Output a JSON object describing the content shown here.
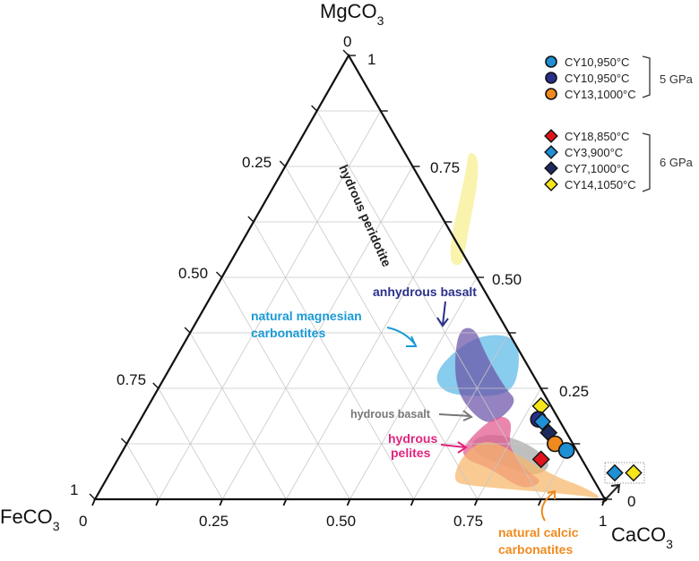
{
  "chart_data": {
    "type": "ternary-scatter",
    "title": "",
    "apices": {
      "top": "MgCO3",
      "left": "FeCO3",
      "right": "CaCO3"
    },
    "axis_range": [
      0,
      1
    ],
    "grid": true,
    "grid_step": 0.125,
    "ticks": {
      "bottom_axis_CaCO3": [
        "0",
        "0.25",
        "0.50",
        "0.75",
        "1"
      ],
      "left_axis_MgCO3": [
        "1",
        "0.75",
        "0.50",
        "0.25",
        "0"
      ],
      "right_axis_MgCO3": [
        "1",
        "0.75",
        "0.50",
        "0.25",
        "0"
      ]
    },
    "tick_values": [
      0,
      0.25,
      0.5,
      0.75,
      1
    ],
    "legend_position": "top-right",
    "legend_groups": [
      {
        "pressure": "5 GPa",
        "entries": [
          {
            "label": "CY10,950°C",
            "marker": "circle",
            "color": "#1f8fd6"
          },
          {
            "label": "CY10,950°C",
            "marker": "circle",
            "color": "#2a2f8c"
          },
          {
            "label": "CY13,1000°C",
            "marker": "circle",
            "color": "#f0891e"
          }
        ]
      },
      {
        "pressure": "6 GPa",
        "entries": [
          {
            "label": "CY18,850°C",
            "marker": "diamond",
            "color": "#e0141e"
          },
          {
            "label": "CY3,900°C",
            "marker": "diamond",
            "color": "#1f8fd6"
          },
          {
            "label": "CY7,1000°C",
            "marker": "diamond",
            "color": "#1d2a5c"
          },
          {
            "label": "CY14,1050°C",
            "marker": "diamond",
            "color": "#f7e51c"
          }
        ]
      }
    ],
    "points": [
      {
        "sample": "CY14,1050°C",
        "marker": "diamond",
        "color": "#f7e51c",
        "CaCO3": 0.77,
        "MgCO3": 0.21
      },
      {
        "sample": "CY10,950°C",
        "marker": "circle",
        "color": "#2a2f8c",
        "CaCO3": 0.78,
        "MgCO3": 0.18
      },
      {
        "sample": "CY3,900°C",
        "marker": "diamond",
        "color": "#1f8fd6",
        "CaCO3": 0.79,
        "MgCO3": 0.175
      },
      {
        "sample": "CY7,1000°C",
        "marker": "diamond",
        "color": "#1d2a5c",
        "CaCO3": 0.815,
        "MgCO3": 0.15
      },
      {
        "sample": "CY13,1000°C",
        "marker": "circle",
        "color": "#f0891e",
        "CaCO3": 0.84,
        "MgCO3": 0.125
      },
      {
        "sample": "CY10,950°C",
        "marker": "circle",
        "color": "#1f8fd6",
        "CaCO3": 0.87,
        "MgCO3": 0.11
      },
      {
        "sample": "CY18,850°C",
        "marker": "diamond",
        "color": "#e0141e",
        "CaCO3": 0.83,
        "MgCO3": 0.09
      }
    ],
    "inset_points": [
      {
        "sample": "CY3,900°C",
        "marker": "diamond",
        "color": "#1f8fd6",
        "CaCO3": 1.0,
        "MgCO3": 0.0
      },
      {
        "sample": "CY14,1050°C",
        "marker": "diamond",
        "color": "#f7e51c",
        "CaCO3": 1.0,
        "MgCO3": 0.0
      }
    ],
    "regions": [
      {
        "name": "hydrous peridotite",
        "color": "#f7ef8f",
        "label_color": "#222222",
        "outline": [
          [
            0.36,
            0.74
          ],
          [
            0.34,
            0.79
          ],
          [
            0.38,
            0.76
          ],
          [
            0.44,
            0.58
          ],
          [
            0.46,
            0.52
          ],
          [
            0.42,
            0.54
          ]
        ]
      },
      {
        "name": "natural magnesian carbonatites",
        "color": "#5ab8e8",
        "label_color": "#1a9ad6",
        "outline": [
          [
            0.52,
            0.29
          ],
          [
            0.56,
            0.37
          ],
          [
            0.64,
            0.37
          ],
          [
            0.68,
            0.31
          ],
          [
            0.7,
            0.24
          ],
          [
            0.64,
            0.23
          ],
          [
            0.56,
            0.24
          ]
        ]
      },
      {
        "name": "anhydrous basalt",
        "color": "#6b53a8",
        "label_color": "#2a2f8c",
        "outline": [
          [
            0.52,
            0.38
          ],
          [
            0.55,
            0.39
          ],
          [
            0.6,
            0.33
          ],
          [
            0.68,
            0.25
          ],
          [
            0.72,
            0.22
          ],
          [
            0.7,
            0.17
          ],
          [
            0.66,
            0.18
          ],
          [
            0.58,
            0.25
          ]
        ]
      },
      {
        "name": "hydrous basalt",
        "color": "#a6a6a6",
        "label_color": "#777777",
        "outline": [
          [
            0.67,
            0.13
          ],
          [
            0.7,
            0.15
          ],
          [
            0.78,
            0.13
          ],
          [
            0.86,
            0.08
          ],
          [
            0.84,
            0.05
          ],
          [
            0.78,
            0.07
          ],
          [
            0.7,
            0.1
          ]
        ]
      },
      {
        "name": "hydrous pelites",
        "color": "#e2578f",
        "label_color": "#e0247d",
        "outline": [
          [
            0.66,
            0.12
          ],
          [
            0.69,
            0.19
          ],
          [
            0.73,
            0.18
          ],
          [
            0.75,
            0.12
          ],
          [
            0.82,
            0.06
          ],
          [
            0.86,
            0.04
          ],
          [
            0.83,
            0.02
          ],
          [
            0.74,
            0.07
          ],
          [
            0.68,
            0.09
          ]
        ]
      },
      {
        "name": "natural calcic carbonatites",
        "color": "#f6b76a",
        "label_color": "#ef8a1e",
        "outline": [
          [
            0.67,
            0.1
          ],
          [
            0.7,
            0.14
          ],
          [
            0.8,
            0.09
          ],
          [
            0.88,
            0.05
          ],
          [
            0.94,
            0.03
          ],
          [
            1.0,
            0.0
          ],
          [
            0.94,
            0.01
          ],
          [
            0.72,
            0.03
          ],
          [
            0.68,
            0.04
          ]
        ]
      }
    ],
    "labels": {
      "hydrous_peridotite": "hydrous peridotite",
      "natural_magnesian_1": "natural magnesian",
      "natural_magnesian_2": "carbonatites",
      "anhydrous_basalt": "anhydrous basalt",
      "hydrous_basalt": "hydrous basalt",
      "hydrous_pelites_1": "hydrous",
      "hydrous_pelites_2": "pelites",
      "natural_calcic_1": "natural calcic",
      "natural_calcic_2": "carbonatites"
    }
  },
  "axis_titles": {
    "top": "MgCO",
    "left": "FeCO",
    "right": "CaCO",
    "subscript": "3"
  },
  "legend": {
    "group1_pressure": "5 GPa",
    "group2_pressure": "6 GPa"
  }
}
